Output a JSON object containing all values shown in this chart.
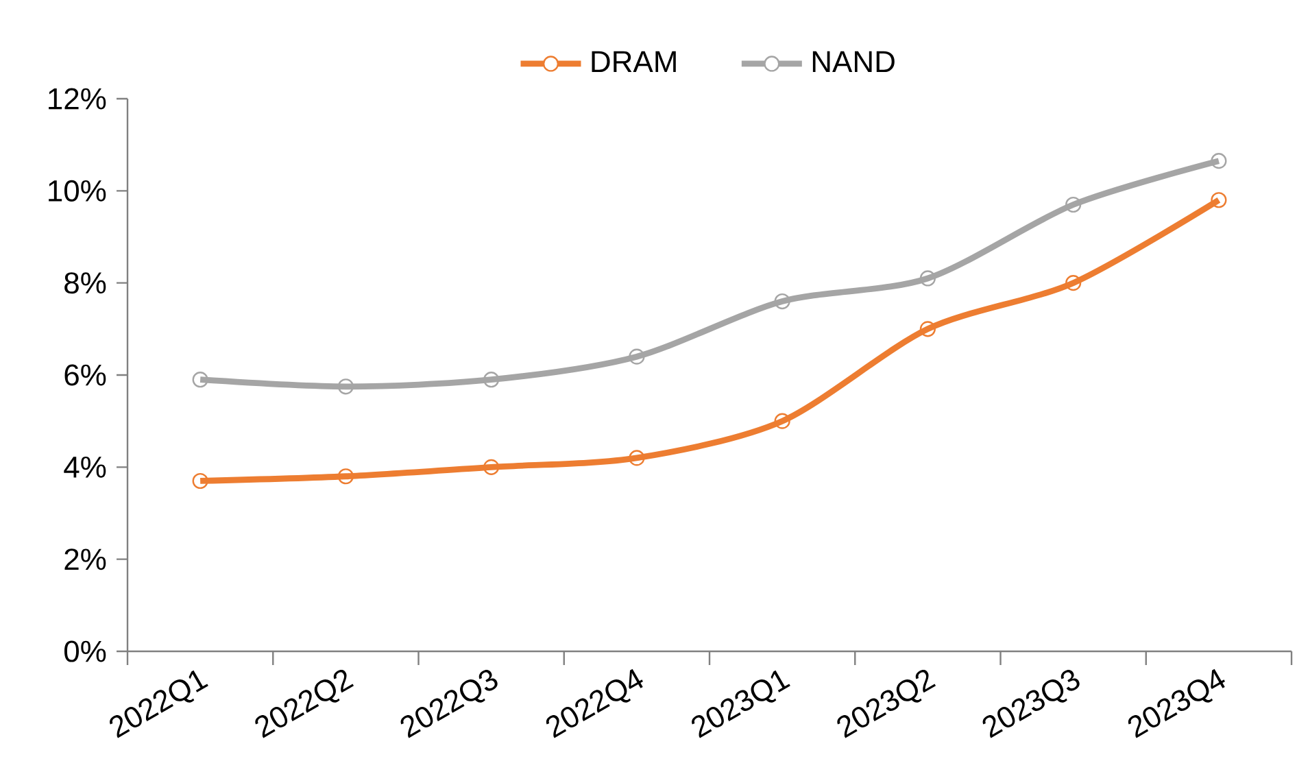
{
  "chart_data": {
    "type": "line",
    "categories": [
      "2022Q1",
      "2022Q2",
      "2022Q3",
      "2022Q4",
      "2023Q1",
      "2023Q2",
      "2023Q3",
      "2023Q4"
    ],
    "series": [
      {
        "name": "DRAM",
        "color": "#ed7d31",
        "values": [
          3.7,
          3.8,
          4.0,
          4.2,
          5.0,
          7.0,
          8.0,
          9.8
        ]
      },
      {
        "name": "NAND",
        "color": "#a5a5a5",
        "values": [
          5.9,
          5.75,
          5.9,
          6.4,
          7.6,
          8.1,
          9.7,
          10.65
        ]
      }
    ],
    "ylim": [
      0,
      12
    ],
    "yticks": [
      {
        "value": 0,
        "label": "0%"
      },
      {
        "value": 2,
        "label": "2%"
      },
      {
        "value": 4,
        "label": "4%"
      },
      {
        "value": 6,
        "label": "6%"
      },
      {
        "value": 8,
        "label": "8%"
      },
      {
        "value": 10,
        "label": "10%"
      },
      {
        "value": 12,
        "label": "12%"
      }
    ],
    "grid": false,
    "legend": "top",
    "marker": "circle",
    "line_style": "solid"
  }
}
